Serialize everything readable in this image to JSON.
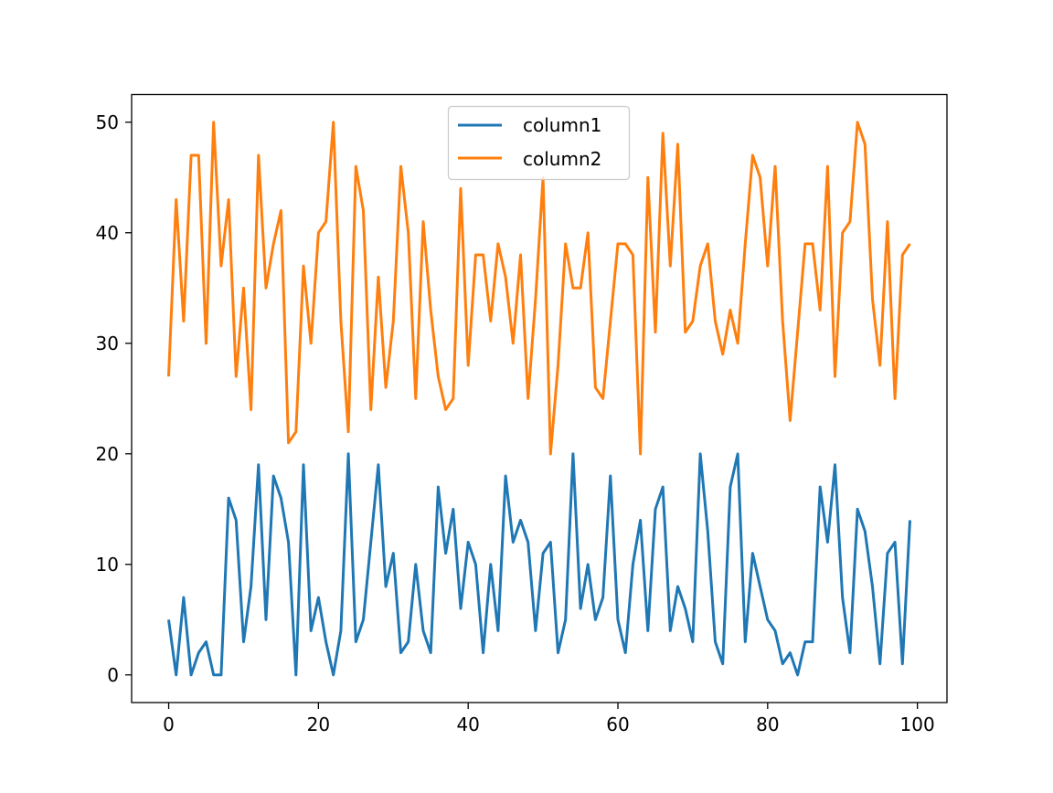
{
  "chart_data": {
    "type": "line",
    "title": "",
    "xlabel": "",
    "ylabel": "",
    "xlim": [
      -4.95,
      103.95
    ],
    "ylim": [
      -2.5,
      52.5
    ],
    "xticks": [
      0,
      20,
      40,
      60,
      80,
      100
    ],
    "yticks": [
      0,
      10,
      20,
      30,
      40,
      50
    ],
    "grid": false,
    "legend_placement": "upper-center",
    "series": [
      {
        "name": "column1",
        "color": "#1f77b4",
        "values": [
          5,
          0,
          7,
          0,
          2,
          3,
          0,
          0,
          16,
          14,
          3,
          8,
          19,
          5,
          18,
          16,
          12,
          0,
          19,
          4,
          7,
          3,
          0,
          4,
          20,
          3,
          5,
          12,
          19,
          8,
          11,
          2,
          3,
          10,
          4,
          2,
          17,
          11,
          15,
          6,
          12,
          10,
          2,
          10,
          4,
          18,
          12,
          14,
          12,
          4,
          11,
          12,
          2,
          5,
          20,
          6,
          10,
          5,
          7,
          18,
          5,
          2,
          10,
          14,
          4,
          15,
          17,
          4,
          8,
          6,
          3,
          20,
          13,
          3,
          1,
          17,
          20,
          3,
          11,
          8,
          5,
          4,
          1,
          2,
          0,
          3,
          3,
          17,
          12,
          19,
          7,
          2,
          15,
          13,
          8,
          1,
          11,
          12,
          1,
          14
        ]
      },
      {
        "name": "column2",
        "color": "#ff7f0e",
        "values": [
          27,
          43,
          32,
          47,
          47,
          30,
          50,
          37,
          43,
          27,
          35,
          24,
          47,
          35,
          39,
          42,
          21,
          22,
          37,
          30,
          40,
          41,
          50,
          32,
          22,
          46,
          42,
          24,
          36,
          26,
          32,
          46,
          40,
          25,
          41,
          33,
          27,
          24,
          25,
          44,
          28,
          38,
          38,
          32,
          39,
          36,
          30,
          38,
          25,
          34,
          45,
          20,
          28,
          39,
          35,
          35,
          40,
          26,
          25,
          32,
          39,
          39,
          38,
          20,
          45,
          31,
          49,
          37,
          48,
          31,
          32,
          37,
          39,
          32,
          29,
          33,
          30,
          39,
          47,
          45,
          37,
          46,
          32,
          23,
          31,
          39,
          39,
          33,
          46,
          27,
          40,
          41,
          50,
          48,
          34,
          28,
          41,
          25,
          38,
          39
        ]
      }
    ]
  }
}
